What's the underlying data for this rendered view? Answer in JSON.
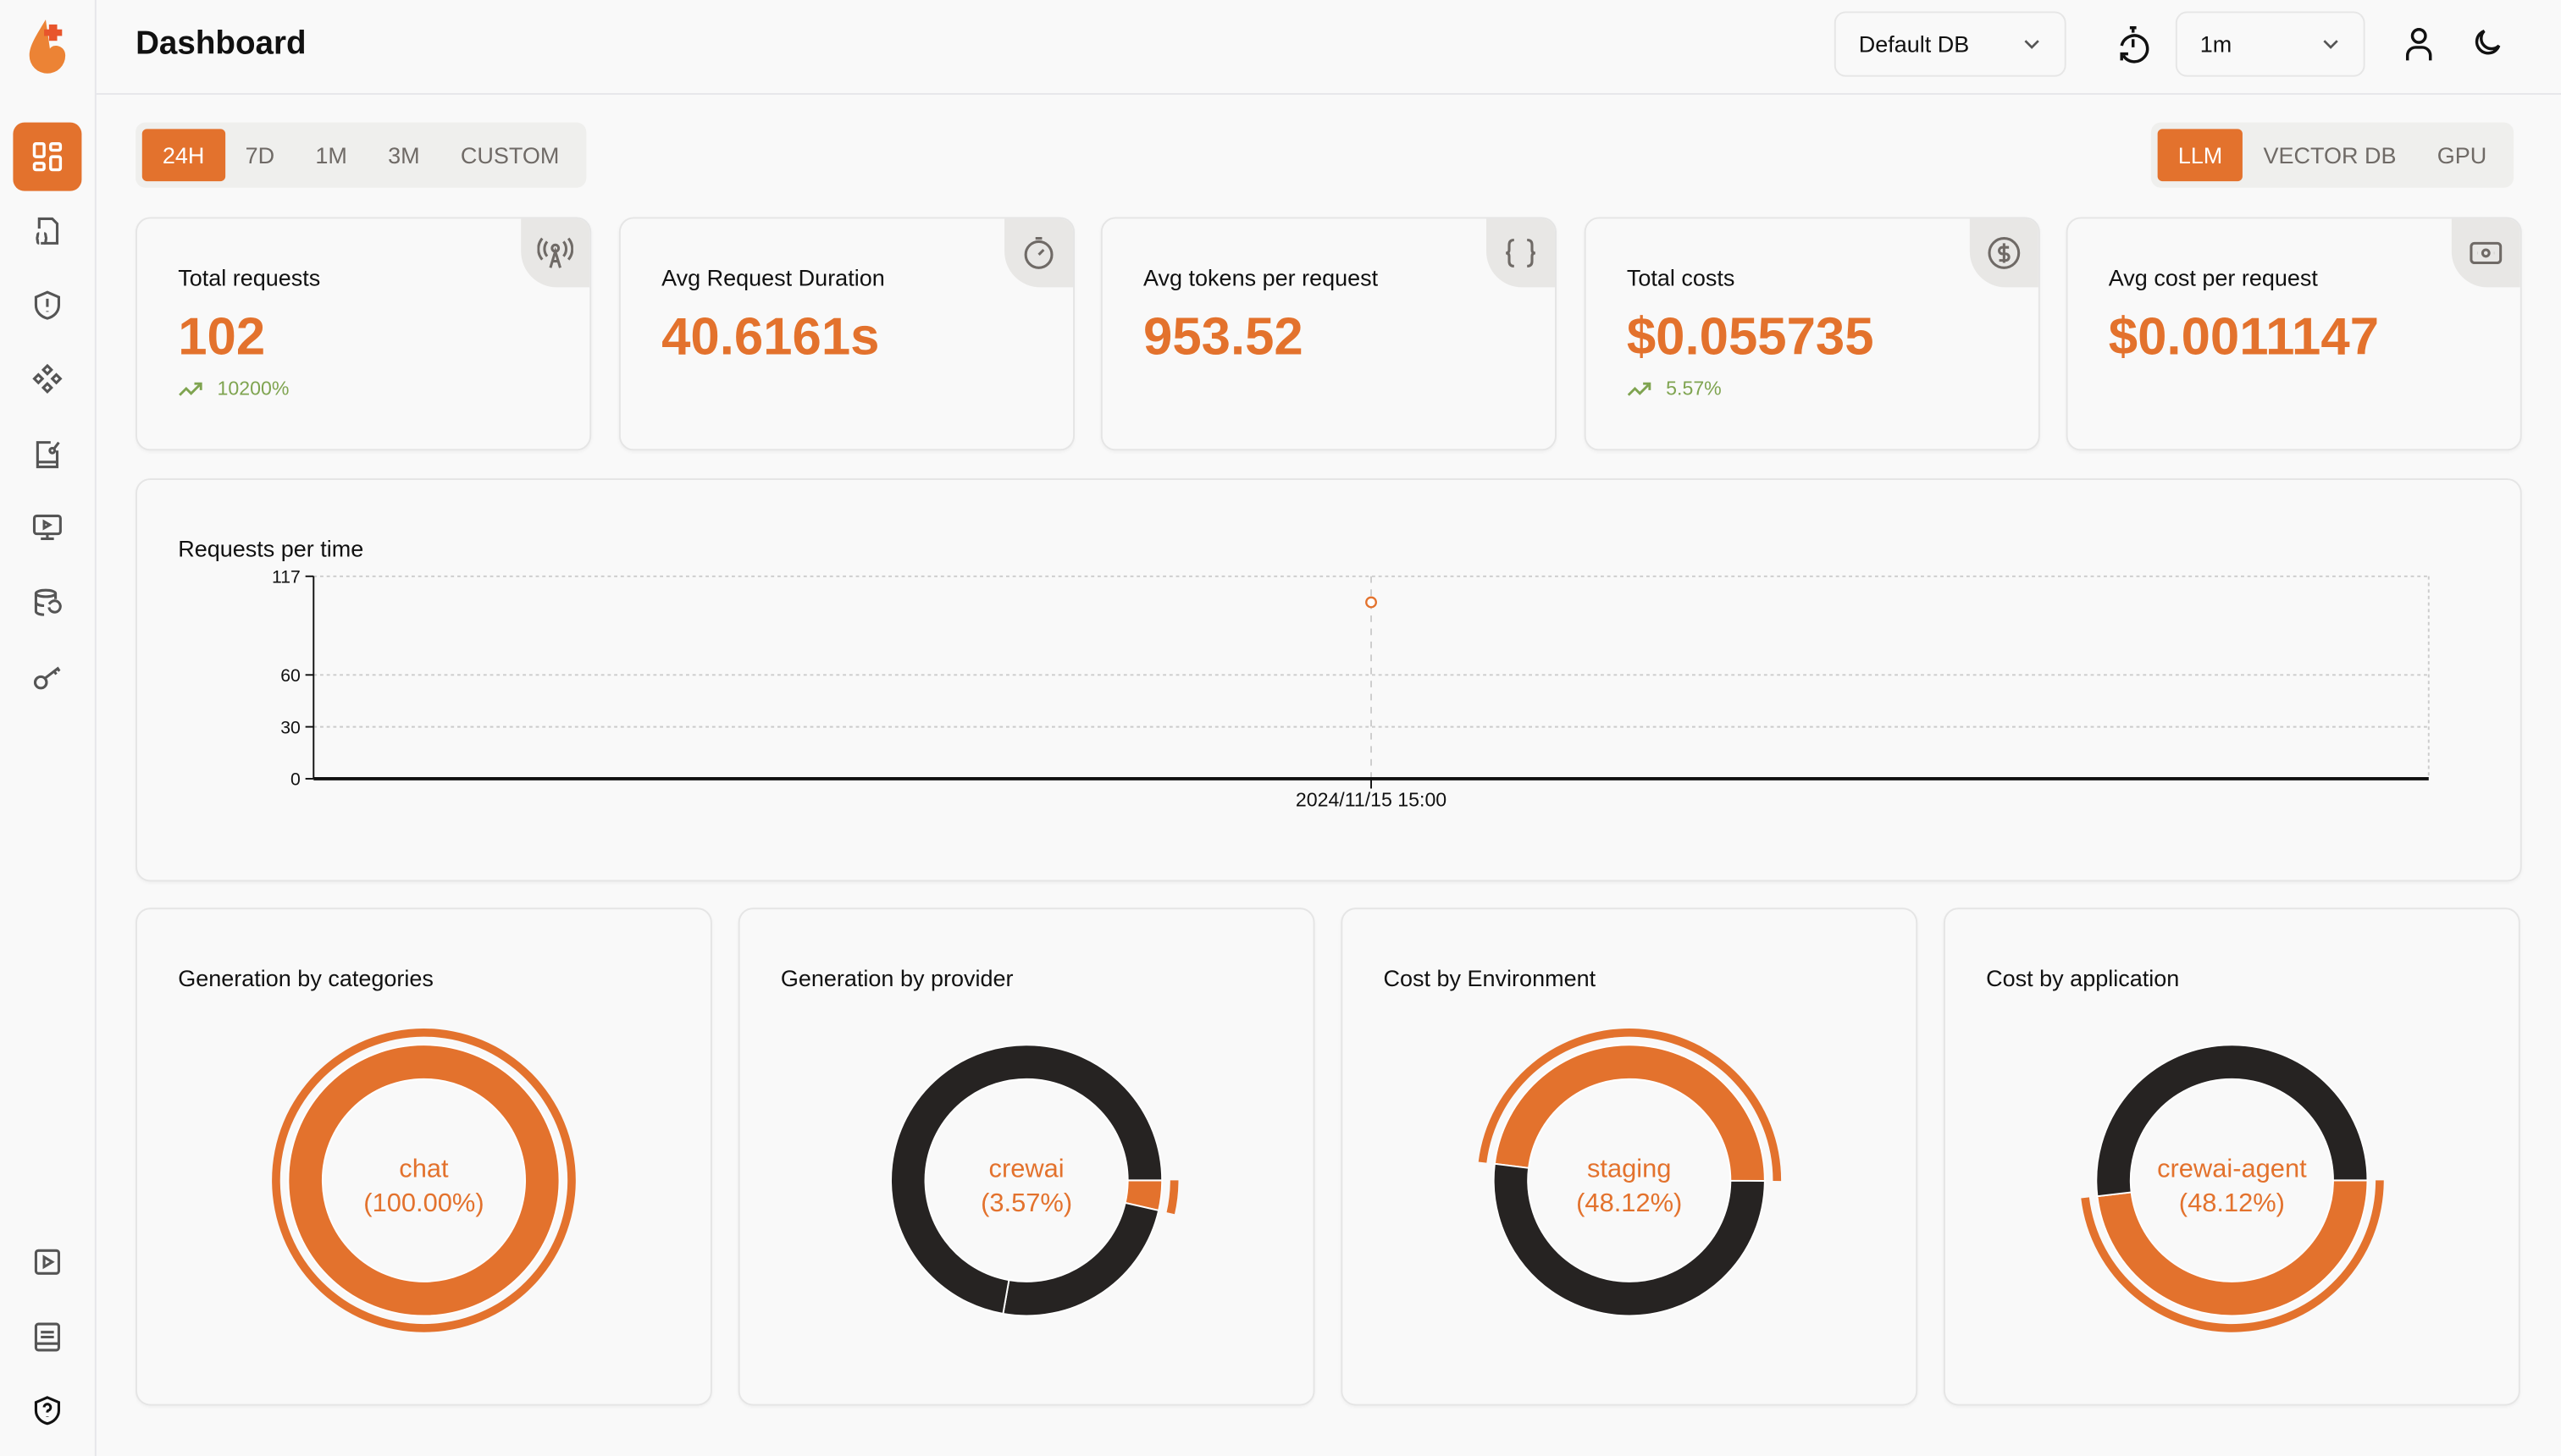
{
  "header": {
    "title": "Dashboard",
    "db_select": "Default DB",
    "refresh_select": "1m"
  },
  "time_ranges": [
    {
      "label": "24H",
      "active": true
    },
    {
      "label": "7D"
    },
    {
      "label": "1M"
    },
    {
      "label": "3M"
    },
    {
      "label": "CUSTOM"
    }
  ],
  "categories": [
    {
      "label": "LLM",
      "active": true
    },
    {
      "label": "VECTOR DB"
    },
    {
      "label": "GPU"
    }
  ],
  "sidebar": {
    "items": [
      "dashboard-icon",
      "requests-icon",
      "guardrails-icon",
      "exceptions-icon",
      "prompts-icon",
      "openground-icon",
      "vault-icon",
      "api-keys-icon"
    ],
    "bottom": [
      "video-icon",
      "docs-icon",
      "help-shield-icon"
    ]
  },
  "stats": [
    {
      "label": "Total requests",
      "value": "102",
      "trend": "10200%",
      "icon": "broadcast-tower-icon"
    },
    {
      "label": "Avg Request Duration",
      "value": "40.6161s",
      "icon": "stopwatch-icon"
    },
    {
      "label": "Avg tokens per request",
      "value": "953.52",
      "icon": "braces-icon"
    },
    {
      "label": "Total costs",
      "value": "$0.055735",
      "trend": "5.57%",
      "icon": "dollar-circle-icon"
    },
    {
      "label": "Avg cost per request",
      "value": "$0.0011147",
      "icon": "banknote-icon"
    }
  ],
  "colors": {
    "accent": "#e3722d",
    "dark": "#262322",
    "trend": "#7fa450"
  },
  "chart_data": [
    {
      "type": "line",
      "title": "Requests per time",
      "x": [
        "2024/11/15 15:00"
      ],
      "y": [
        102
      ],
      "yticks": [
        0,
        30,
        60,
        117
      ],
      "ylim": [
        0,
        117
      ],
      "grid": true
    },
    {
      "type": "pie",
      "title": "Generation by categories",
      "labels": [
        "chat"
      ],
      "values": [
        100
      ],
      "active_label": "chat",
      "active_percent": "(100.00%)"
    },
    {
      "type": "pie",
      "title": "Generation by provider",
      "labels": [
        "crewai",
        "",
        ""
      ],
      "values": [
        3.57,
        24.2,
        72.23
      ],
      "active_label": "crewai",
      "active_percent": "(3.57%)"
    },
    {
      "type": "pie",
      "title": "Cost by Environment",
      "labels": [
        "staging",
        ""
      ],
      "values": [
        48.12,
        51.88
      ],
      "active_label": "staging",
      "active_percent": "(48.12%)"
    },
    {
      "type": "pie",
      "title": "Cost by application",
      "labels": [
        "crewai-agent",
        ""
      ],
      "values": [
        48.12,
        51.88
      ],
      "active_label": "crewai-agent",
      "active_percent": "(48.12%)"
    }
  ]
}
